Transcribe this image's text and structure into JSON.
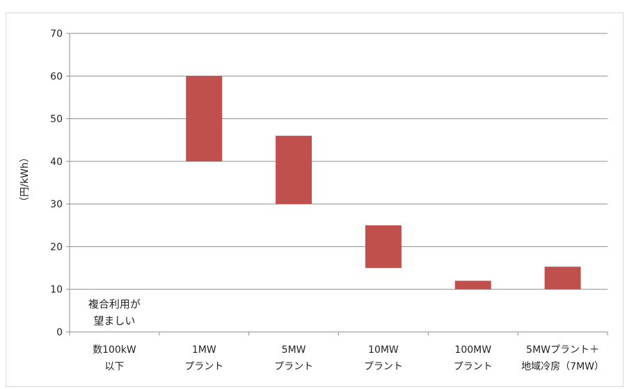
{
  "chart_data": {
    "type": "bar",
    "subtype": "floating-range",
    "title": "",
    "xlabel": "",
    "ylabel": "（円/kWh）",
    "ylim": [
      0,
      70
    ],
    "yticks": [
      0,
      10,
      20,
      30,
      40,
      50,
      60,
      70
    ],
    "grid": true,
    "legend": "none",
    "bar_color": "#c0504d",
    "categories": [
      [
        "数100kW",
        "以下"
      ],
      [
        "1MW",
        "プラント"
      ],
      [
        "5MW",
        "プラント"
      ],
      [
        "10MW",
        "プラント"
      ],
      [
        "100MW",
        "プラント"
      ],
      [
        "5MWプラント＋",
        "地域冷房（7MW）"
      ]
    ],
    "ranges": [
      null,
      [
        40,
        60
      ],
      [
        30,
        46
      ],
      [
        15,
        25
      ],
      [
        10,
        12
      ],
      [
        10,
        15.3
      ]
    ],
    "annotations": [
      {
        "category_index": 0,
        "lines": [
          "複合利用が",
          "望ましい"
        ]
      }
    ]
  }
}
